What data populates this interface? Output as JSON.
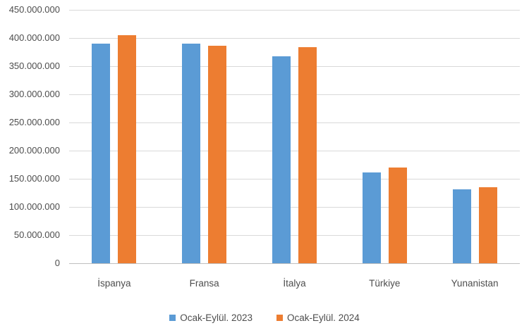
{
  "chart_data": {
    "type": "bar",
    "title": "",
    "categories": [
      "İspanya",
      "Fransa",
      "İtalya",
      "Türkiye",
      "Yunanistan"
    ],
    "series": [
      {
        "name": "Ocak-Eylül. 2023",
        "color": "#5B9BD5",
        "values": [
          390000000,
          390000000,
          367000000,
          161000000,
          131000000
        ]
      },
      {
        "name": "Ocak-Eylül. 2024",
        "color": "#ED7D31",
        "values": [
          405000000,
          386000000,
          384000000,
          170000000,
          135000000
        ]
      }
    ],
    "xlabel": "",
    "ylabel": "",
    "ylim": [
      0,
      450000000
    ],
    "ytick_step": 50000000,
    "ytick_labels": [
      "0",
      "50.000.000",
      "100.000.000",
      "150.000.000",
      "200.000.000",
      "250.000.000",
      "300.000.000",
      "350.000.000",
      "400.000.000",
      "450.000.000"
    ],
    "grid": true,
    "legend_position": "bottom"
  },
  "colors": {
    "background": "#ffffff",
    "gridline": "#d9d9d9",
    "axis_line": "#bfbfbf",
    "tick_text": "#4d4d4d"
  }
}
